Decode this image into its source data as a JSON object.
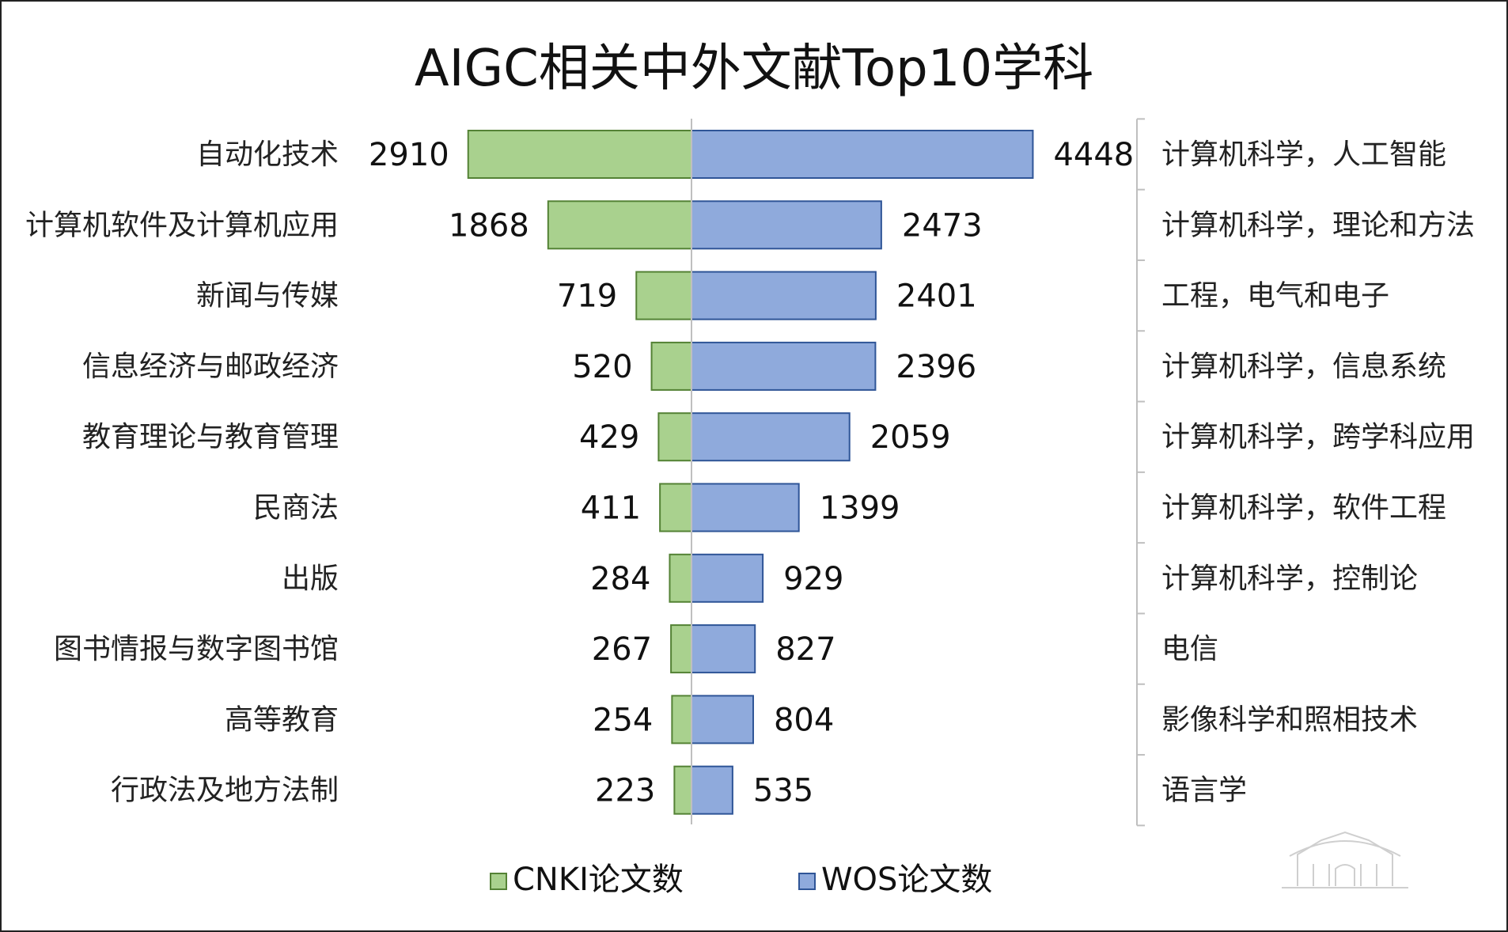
{
  "chart_data": {
    "type": "bar",
    "orientation": "diverging-horizontal",
    "title": "AIGC相关中外文献Top10学科",
    "series": [
      {
        "name": "CNKI论文数",
        "color": "#a9d18e",
        "stroke": "#548235",
        "categories": [
          "自动化技术",
          "计算机软件及计算机应用",
          "新闻与传媒",
          "信息经济与邮政经济",
          "教育理论与教育管理",
          "民商法",
          "出版",
          "图书情报与数字图书馆",
          "高等教育",
          "行政法及地方法制"
        ],
        "values": [
          2910,
          1868,
          719,
          520,
          429,
          411,
          284,
          267,
          254,
          223
        ]
      },
      {
        "name": "WOS论文数",
        "color": "#8faadc",
        "stroke": "#2f5597",
        "categories": [
          "计算机科学，人工智能",
          "计算机科学，理论和方法",
          "工程，电气和电子",
          "计算机科学，信息系统",
          "计算机科学，跨学科应用",
          "计算机科学，软件工程",
          "计算机科学，控制论",
          "电信",
          "影像科学和照相技术",
          "语言学"
        ],
        "values": [
          4448,
          2473,
          2401,
          2396,
          2059,
          1399,
          929,
          827,
          804,
          535
        ]
      }
    ],
    "legend_position": "bottom",
    "grid": false
  }
}
